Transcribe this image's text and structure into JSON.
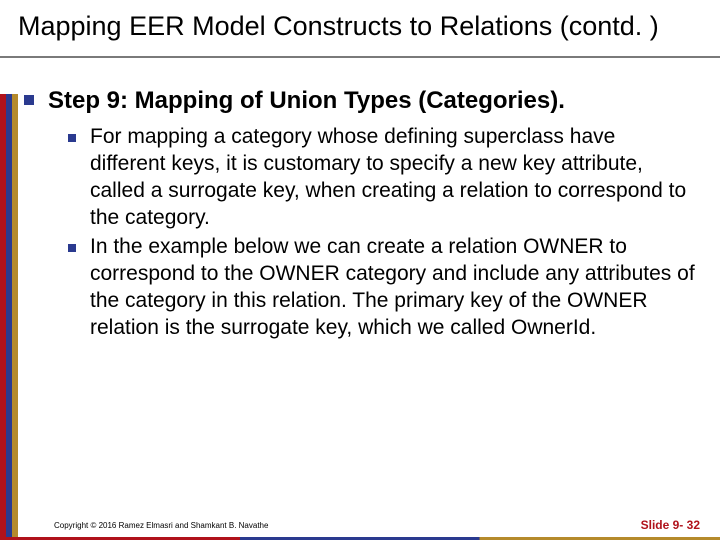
{
  "colors": {
    "bullet": "#2a3a8f",
    "stripe_red": "#b0121b",
    "stripe_blue": "#2a3a8f",
    "stripe_gold": "#b58a2b",
    "title_underline": "#7a7a7a",
    "text": "#000000",
    "slidenum": "#b0121b",
    "background": "#ffffff"
  },
  "fonts": {
    "title_size_pt": 27,
    "lvl1_size_pt": 24,
    "lvl2_size_pt": 21,
    "copyright_size_pt": 8,
    "slidenum_size_pt": 12,
    "family": "Arial"
  },
  "title": "Mapping EER Model Constructs to Relations (contd. )",
  "bullets": {
    "lvl1": "Step 9: Mapping of Union Types (Categories).",
    "lvl2": [
      "For mapping a category whose defining superclass have different keys, it is customary to specify a new key attribute, called a surrogate key, when creating a relation to correspond to the category.",
      "In the example below we can create a relation OWNER to correspond to the OWNER category and include any attributes of the category in this relation. The primary key of the OWNER relation is the surrogate key, which we called OwnerId."
    ]
  },
  "footer": {
    "copyright": "Copyright © 2016 Ramez Elmasri and Shamkant B. Navathe",
    "slidenum": "Slide 9- 32"
  }
}
